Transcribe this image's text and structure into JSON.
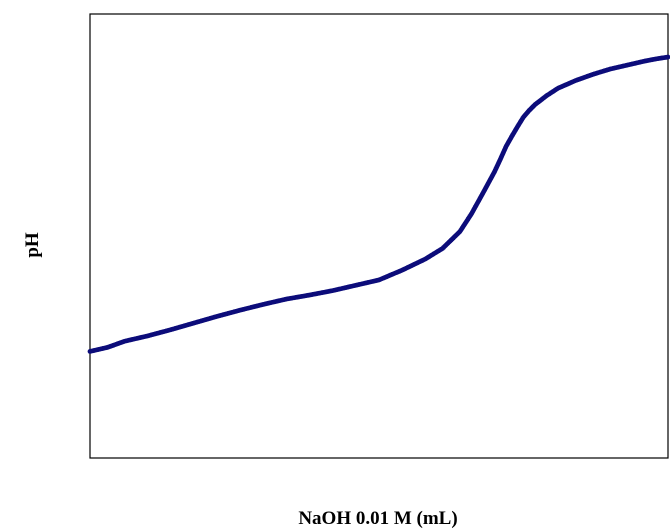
{
  "chart_data": {
    "type": "scatter",
    "title": "",
    "xlabel": "NaOH 0.01 M (mL)",
    "ylabel": "pH",
    "xlim": [
      0,
      100
    ],
    "ylim": [
      0,
      100
    ],
    "grid": false,
    "legend": "none",
    "series": [
      {
        "color": "#0c0c7a",
        "points": [
          [
            0,
            24
          ],
          [
            3,
            24.9
          ],
          [
            6,
            26.3
          ],
          [
            10,
            27.5
          ],
          [
            14,
            28.9
          ],
          [
            18,
            30.4
          ],
          [
            22,
            31.9
          ],
          [
            26,
            33.3
          ],
          [
            30,
            34.6
          ],
          [
            34,
            35.8
          ],
          [
            38,
            36.7
          ],
          [
            42,
            37.7
          ],
          [
            46,
            38.9
          ],
          [
            50,
            40.1
          ],
          [
            54,
            42.3
          ],
          [
            58,
            44.8
          ],
          [
            61,
            47.2
          ],
          [
            64,
            51
          ],
          [
            66,
            55
          ],
          [
            68,
            59.7
          ],
          [
            70,
            64.5
          ],
          [
            71,
            67.3
          ],
          [
            72,
            70.2
          ],
          [
            73,
            72.5
          ],
          [
            74,
            74.7
          ],
          [
            75,
            76.8
          ],
          [
            76,
            78.3
          ],
          [
            77,
            79.6
          ],
          [
            79,
            81.6
          ],
          [
            81,
            83.3
          ],
          [
            84,
            85
          ],
          [
            87,
            86.4
          ],
          [
            90,
            87.6
          ],
          [
            93,
            88.5
          ],
          [
            96,
            89.4
          ],
          [
            98,
            89.9
          ],
          [
            100,
            90.3
          ]
        ]
      }
    ]
  }
}
